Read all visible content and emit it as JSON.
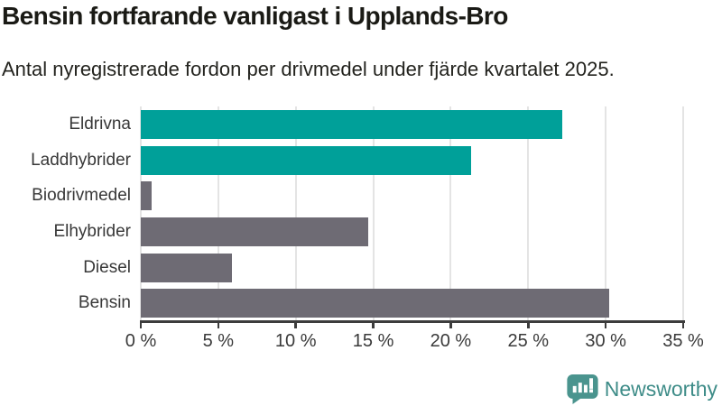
{
  "chart_data": {
    "type": "bar",
    "orientation": "horizontal",
    "title": "Bensin fortfarande vanligast i Upplands-Bro",
    "subtitle": "Antal nyregistrerade fordon per drivmedel under fjärde kvartalet 2025.",
    "categories": [
      "Eldrivna",
      "Laddhybrider",
      "Biodrivmedel",
      "Elhybrider",
      "Diesel",
      "Bensin"
    ],
    "values": [
      27.2,
      21.3,
      0.7,
      14.7,
      5.9,
      30.2
    ],
    "unit": "%",
    "bar_colors": [
      "#00A099",
      "#00A099",
      "#6E6B74",
      "#6E6B74",
      "#6E6B74",
      "#6E6B74"
    ],
    "xlim": [
      0,
      35
    ],
    "x_ticks": [
      0,
      5,
      10,
      15,
      20,
      25,
      30,
      35
    ],
    "x_tick_labels": [
      "0 %",
      "5 %",
      "10 %",
      "15 %",
      "20 %",
      "25 %",
      "30 %",
      "35 %"
    ],
    "grid": true,
    "legend": false,
    "ylabel": "",
    "xlabel": ""
  },
  "colors": {
    "accent_teal": "#00A099",
    "bar_gray": "#6E6B74",
    "gridline": "#E4E4E4",
    "axis": "#3C3C3C",
    "label_text": "#383838",
    "title_text": "#1A1A15",
    "brand_teal": "#3E8C88",
    "background": "#FFFFFF"
  },
  "footer": {
    "brand": "Newsworthy"
  }
}
